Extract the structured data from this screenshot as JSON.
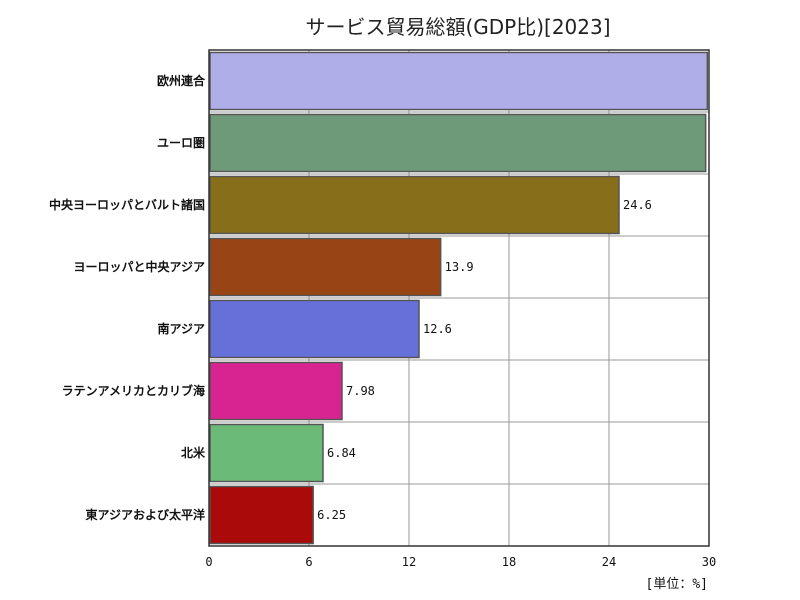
{
  "chart_data": {
    "type": "bar",
    "orientation": "horizontal",
    "title": "サービス貿易総額(GDP比)[2023]",
    "unit_label": "[単位：%]",
    "categories": [
      "欧州連合",
      "ユーロ圏",
      "中央ヨーロッパとバルト諸国",
      "ヨーロッパと中央アジア",
      "南アジア",
      "ラテンアメリカとカリブ海",
      "北米",
      "東アジアおよび太平洋"
    ],
    "values": [
      29.9,
      29.8,
      24.6,
      13.9,
      12.6,
      7.98,
      6.84,
      6.25
    ],
    "data_labels": [
      "",
      "",
      "24.6",
      "13.9",
      "12.6",
      "7.98",
      "6.84",
      "6.25"
    ],
    "colors": [
      "#b0aee8",
      "#6f9a7a",
      "#876e1a",
      "#994414",
      "#6570d8",
      "#d82490",
      "#6cba78",
      "#aa0a0a"
    ],
    "xlim": [
      0,
      30
    ],
    "x_ticks": [
      "0",
      "6",
      "12",
      "18",
      "24",
      "30"
    ],
    "grid": true
  }
}
